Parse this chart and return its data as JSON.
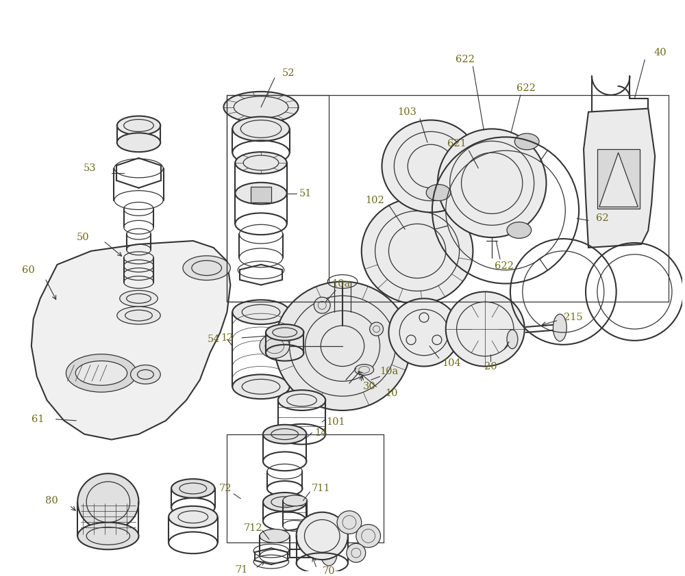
{
  "bg_color": "#ffffff",
  "line_color": "#333333",
  "label_color": "#6b6b1a",
  "figsize": [
    10.0,
    8.42
  ],
  "dpi": 100,
  "border_color": "#444444"
}
